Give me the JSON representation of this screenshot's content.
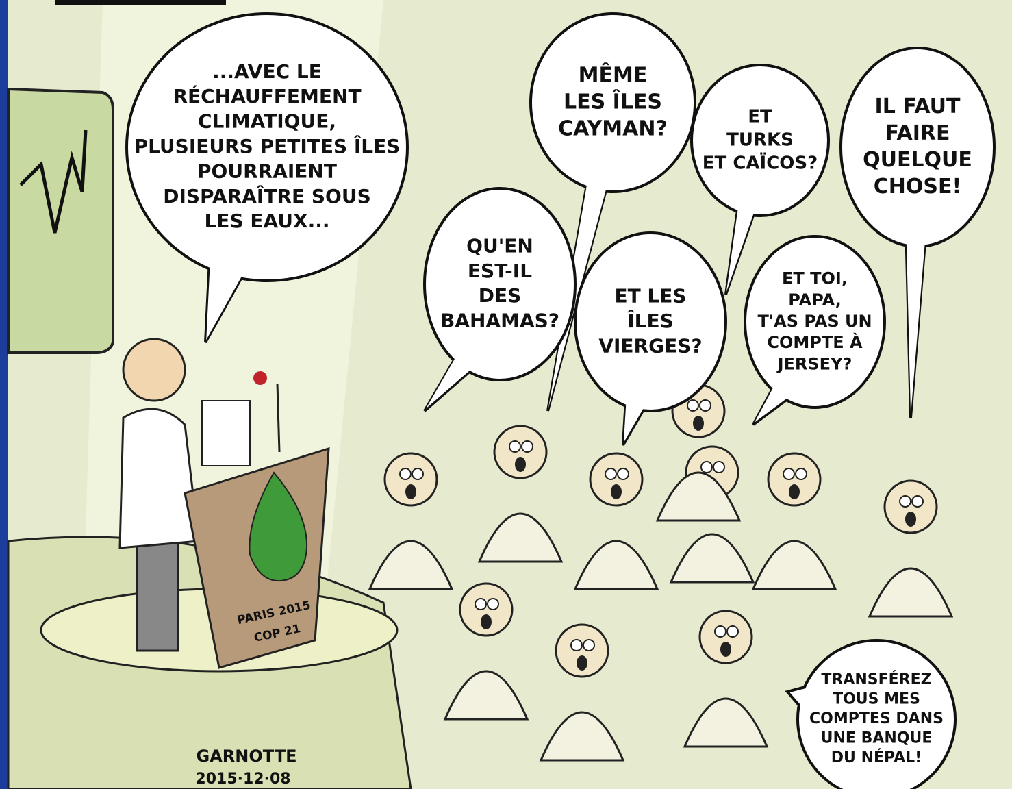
{
  "bubbles": [
    {
      "lines": [
        "...AVEC LE",
        "RÉCHAUFFEMENT",
        "CLIMATIQUE,",
        "PLUSIEURS PETITES ÎLES",
        "POURRAIENT",
        "DISPARAÎTRE SOUS",
        "LES EAUX..."
      ]
    },
    {
      "lines": [
        "MÊME",
        "LES ÎLES",
        "CAYMAN?"
      ]
    },
    {
      "lines": [
        "ET",
        "TURKS",
        "ET CAÏCOS?"
      ]
    },
    {
      "lines": [
        "IL FAUT",
        "FAIRE",
        "QUELQUE",
        "CHOSE!"
      ]
    },
    {
      "lines": [
        "QU'EN",
        "EST-IL",
        "DES",
        "BAHAMAS?"
      ]
    },
    {
      "lines": [
        "ET LES",
        "ÎLES",
        "VIERGES?"
      ]
    },
    {
      "lines": [
        "ET TOI,",
        "PAPA,",
        "T'AS PAS UN",
        "COMPTE À",
        "JERSEY?"
      ]
    },
    {
      "lines": [
        "TRANSFÉREZ",
        "TOUS MES",
        "COMPTES DANS",
        "UNE BANQUE",
        "DU NÉPAL!"
      ]
    }
  ],
  "podium": {
    "lines": [
      "PARIS 2015",
      "COP 21"
    ]
  },
  "signature": {
    "name": "GARNOTTE",
    "date": "2015·12·08"
  }
}
